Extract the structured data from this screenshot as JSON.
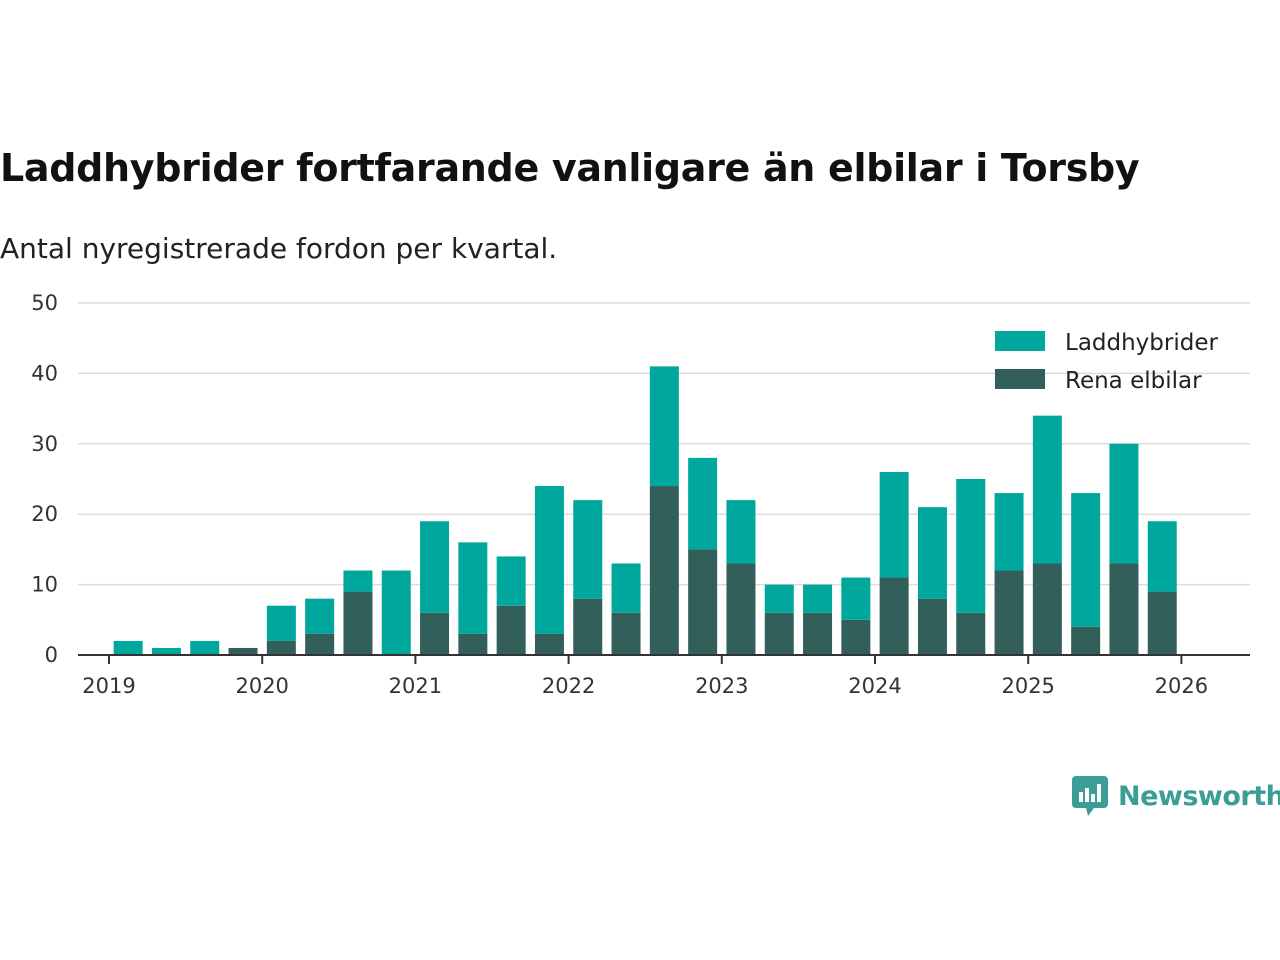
{
  "chart_data": {
    "type": "bar",
    "stacked": true,
    "title": "Laddhybrider fortfarande vanligare än elbilar i Torsby",
    "subtitle": "Antal nyregistrerade fordon per kvartal.",
    "xlabel": "",
    "ylabel": "",
    "ylim": [
      0,
      50
    ],
    "y_ticks": [
      "0",
      "10",
      "20",
      "30",
      "40",
      "50"
    ],
    "x_tick_labels": [
      "2019",
      "2020",
      "2021",
      "2022",
      "2023",
      "2024",
      "2025",
      "2026"
    ],
    "categories": [
      "2019 Q1",
      "2019 Q2",
      "2019 Q3",
      "2019 Q4",
      "2020 Q1",
      "2020 Q2",
      "2020 Q3",
      "2020 Q4",
      "2021 Q1",
      "2021 Q2",
      "2021 Q3",
      "2021 Q4",
      "2022 Q1",
      "2022 Q2",
      "2022 Q3",
      "2022 Q4",
      "2023 Q1",
      "2023 Q2",
      "2023 Q3",
      "2023 Q4",
      "2024 Q1",
      "2024 Q2",
      "2024 Q3",
      "2024 Q4",
      "2025 Q1",
      "2025 Q2",
      "2025 Q3",
      "2025 Q4"
    ],
    "series": [
      {
        "name": "Rena elbilar",
        "color": "#335f5a",
        "values": [
          0,
          0,
          0,
          1,
          2,
          3,
          9,
          0,
          6,
          3,
          7,
          3,
          8,
          6,
          24,
          15,
          13,
          6,
          6,
          5,
          11,
          8,
          6,
          12,
          13,
          4,
          13,
          9
        ]
      },
      {
        "name": "Laddhybrider",
        "color": "#00a79d",
        "values": [
          2,
          1,
          2,
          0,
          5,
          5,
          3,
          12,
          13,
          13,
          7,
          21,
          14,
          7,
          17,
          13,
          9,
          4,
          4,
          6,
          15,
          13,
          19,
          11,
          21,
          19,
          17,
          10
        ]
      }
    ],
    "legend": {
      "position": "top-right",
      "entries": [
        "Laddhybrider",
        "Rena elbilar"
      ]
    },
    "grid": true
  },
  "brand": {
    "name": "Newsworthy"
  },
  "colors": {
    "hybrid": "#00a79d",
    "electric": "#335f5a",
    "grid": "#dcdcdc",
    "axis": "#333333",
    "brand": "#3a9d96"
  }
}
